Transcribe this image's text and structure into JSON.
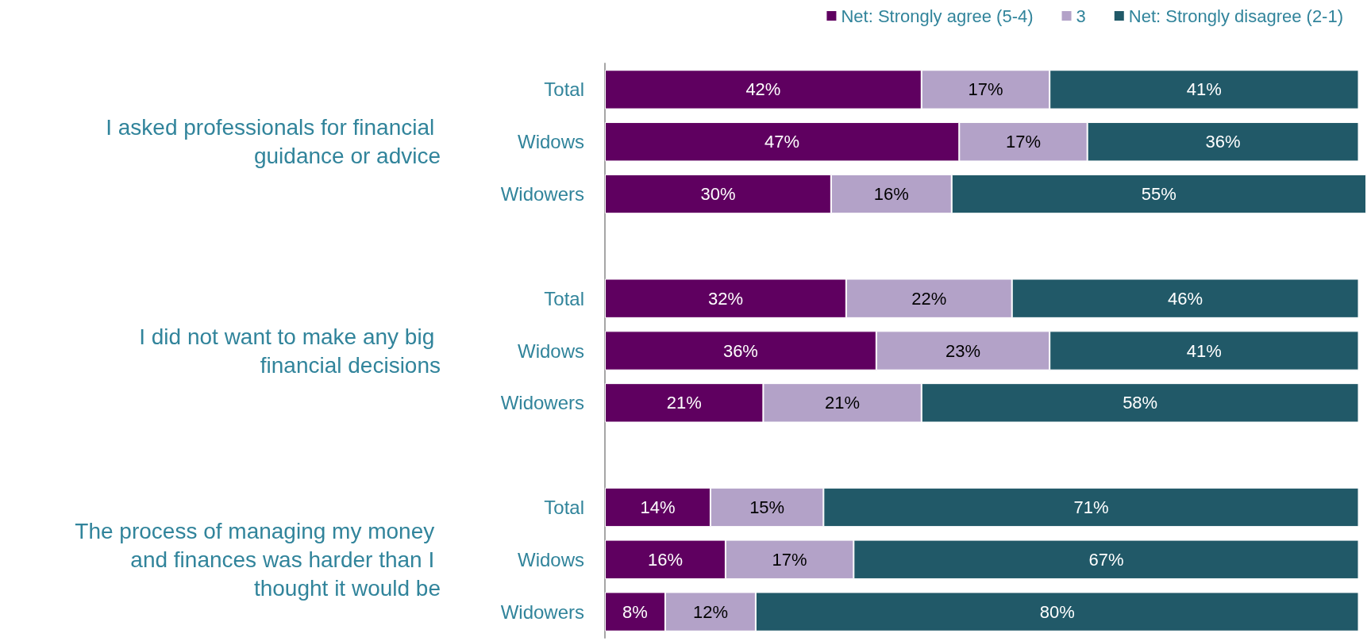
{
  "chart_data": {
    "type": "bar",
    "orientation": "horizontal",
    "stacked": true,
    "tick_labels": "y",
    "grid": false,
    "legend": "top right",
    "categories": [
      "Total",
      "Widows",
      "Widowers",
      null,
      "Total",
      "Widows",
      "Widowers",
      null,
      "Total",
      "Widows",
      "Widowers"
    ],
    "series": [
      {
        "name": "Net: Strongly agree (5-4)",
        "color": "#5f0060",
        "values": [
          42,
          47,
          30,
          null,
          32,
          36,
          21,
          null,
          14,
          16,
          8
        ],
        "value_labels": [
          "42%",
          "47%",
          "30%",
          null,
          "32%",
          "36%",
          "21%",
          null,
          "14%",
          "16%",
          "8%"
        ]
      },
      {
        "name": "3",
        "color": "#b3a2c8",
        "values": [
          17,
          17,
          16,
          null,
          22,
          23,
          21,
          null,
          15,
          17,
          12
        ],
        "value_labels": [
          "17%",
          "17%",
          "16%",
          null,
          "22%",
          "23%",
          "21%",
          null,
          "15%",
          "17%",
          "12%"
        ]
      },
      {
        "name": "Net: Strongly disagree (2-1)",
        "color": "#215968",
        "values": [
          41,
          36,
          55,
          null,
          46,
          41,
          58,
          null,
          71,
          67,
          80
        ],
        "value_labels": [
          "41%",
          "36%",
          "55%",
          null,
          "46%",
          "41%",
          "58%",
          null,
          "71%",
          "67%",
          "80%"
        ]
      }
    ],
    "annotations": [
      "I asked professionals for financial guidance or advice",
      "I did not want to make any big financial decisions",
      "The process of managing my money and finances was harder than I thought it would be"
    ]
  }
}
